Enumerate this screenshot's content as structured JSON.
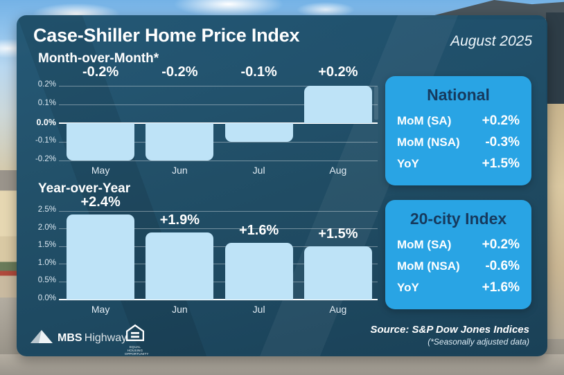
{
  "header": {
    "title": "Case-Shiller Home Price Index",
    "date": "August 2025"
  },
  "chart_data": [
    {
      "type": "bar",
      "heading": "Month-over-Month*",
      "categories": [
        "May",
        "Jun",
        "Jul",
        "Aug"
      ],
      "values": [
        -0.2,
        -0.2,
        -0.1,
        0.2
      ],
      "bar_labels": [
        "-0.2%",
        "-0.2%",
        "-0.1%",
        "+0.2%"
      ],
      "yticks": [
        "0.2%",
        "0.1%",
        "0.0%",
        "-0.1%",
        "-0.2%"
      ],
      "ylim": [
        -0.2,
        0.2
      ],
      "grid": true,
      "xlabel": "",
      "ylabel": ""
    },
    {
      "type": "bar",
      "heading": "Year-over-Year",
      "categories": [
        "May",
        "Jun",
        "Jul",
        "Aug"
      ],
      "values": [
        2.4,
        1.9,
        1.6,
        1.5
      ],
      "bar_labels": [
        "+2.4%",
        "+1.9%",
        "+1.6%",
        "+1.5%"
      ],
      "yticks": [
        "2.5%",
        "2.0%",
        "1.5%",
        "1.0%",
        "0.5%",
        "0.0%"
      ],
      "ylim": [
        0,
        2.5
      ],
      "grid": true,
      "xlabel": "",
      "ylabel": ""
    }
  ],
  "panels": [
    {
      "title": "National",
      "rows": [
        {
          "label": "MoM (SA)",
          "value": "+0.2%"
        },
        {
          "label": "MoM (NSA)",
          "value": "-0.3%"
        },
        {
          "label": "YoY",
          "value": "+1.5%"
        }
      ]
    },
    {
      "title": "20-city Index",
      "rows": [
        {
          "label": "MoM (SA)",
          "value": "+0.2%"
        },
        {
          "label": "MoM (NSA)",
          "value": "-0.6%"
        },
        {
          "label": "YoY",
          "value": "+1.6%"
        }
      ]
    }
  ],
  "footer": {
    "brand_bold": "MBS",
    "brand_rest": "Highway.",
    "equal_housing_label": "EQUAL HOUSING OPPORTUNITY",
    "source": "Source: S&P Dow Jones Indices",
    "note": "(*Seasonally adjusted data)"
  },
  "colors": {
    "panel_blue": "#29a4e4",
    "panel_title_navy": "#163a5e",
    "bar_fill": "#bee3f7",
    "card_bg": "#1d4a63",
    "sky_blue": "#74b2e6",
    "text_white": "#ffffff"
  }
}
